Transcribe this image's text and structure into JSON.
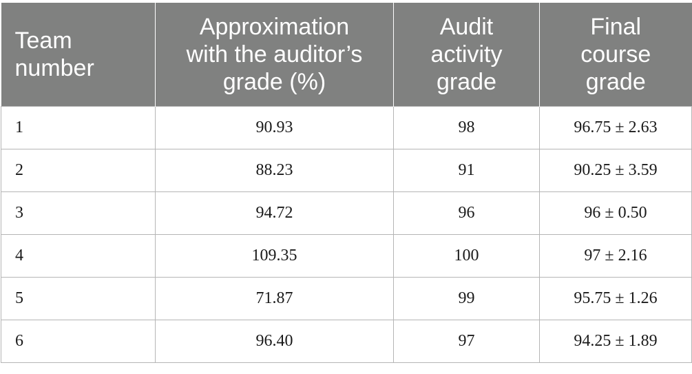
{
  "colors": {
    "header_bg": "#808180",
    "header_text": "#ffffff",
    "grid_line": "#b5b5b5",
    "body_text": "#1a1a1a"
  },
  "headers": [
    {
      "lines": [
        "Team",
        "number"
      ]
    },
    {
      "lines": [
        "Approximation",
        "with the auditor’s",
        "grade (%)"
      ]
    },
    {
      "lines": [
        "Audit",
        "activity",
        "grade"
      ]
    },
    {
      "lines": [
        "Final",
        "course",
        "grade"
      ]
    }
  ],
  "rows": [
    {
      "team": "1",
      "approximation": "90.93",
      "audit": "98",
      "final": "96.75 ± 2.63"
    },
    {
      "team": "2",
      "approximation": "88.23",
      "audit": "91",
      "final": "90.25 ± 3.59"
    },
    {
      "team": "3",
      "approximation": "94.72",
      "audit": "96",
      "final": "96 ± 0.50"
    },
    {
      "team": "4",
      "approximation": "109.35",
      "audit": "100",
      "final": "97 ± 2.16"
    },
    {
      "team": "5",
      "approximation": "71.87",
      "audit": "99",
      "final": "95.75 ± 1.26"
    },
    {
      "team": "6",
      "approximation": "96.40",
      "audit": "97",
      "final": "94.25 ± 1.89"
    }
  ]
}
